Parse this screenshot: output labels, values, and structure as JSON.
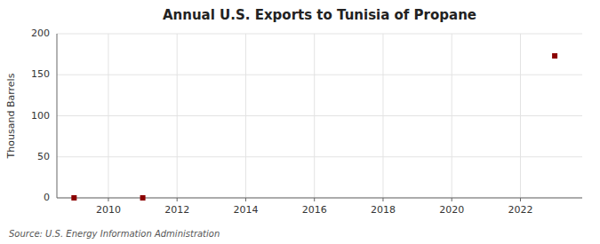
{
  "chart_data": {
    "type": "scatter",
    "title": "Annual U.S. Exports to Tunisia of Propane",
    "ylabel": "Thousand Barrels",
    "source": "Source: U.S. Energy Information Administration",
    "x": [
      2009,
      2011,
      2023
    ],
    "values": [
      0,
      0,
      173
    ],
    "color": "#8b0000",
    "marker": "square",
    "xlim": [
      2008.5,
      2023.8
    ],
    "ylim": [
      0,
      200
    ],
    "xticks": [
      2010,
      2012,
      2014,
      2016,
      2018,
      2020,
      2022
    ],
    "yticks": [
      0,
      50,
      100,
      150,
      200
    ],
    "grid": true
  }
}
